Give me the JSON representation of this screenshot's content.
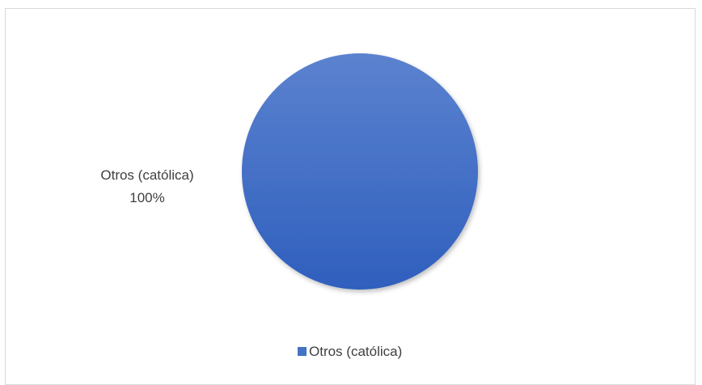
{
  "chart_data": {
    "type": "pie",
    "categories": [
      "Otros (católica)"
    ],
    "values": [
      100
    ],
    "data_labels": [
      {
        "category": "Otros (católica)",
        "percent_text": "100%"
      }
    ],
    "colors": [
      "#4472c4"
    ],
    "legend": {
      "position": "bottom",
      "entries": [
        "Otros (católica)"
      ]
    }
  }
}
